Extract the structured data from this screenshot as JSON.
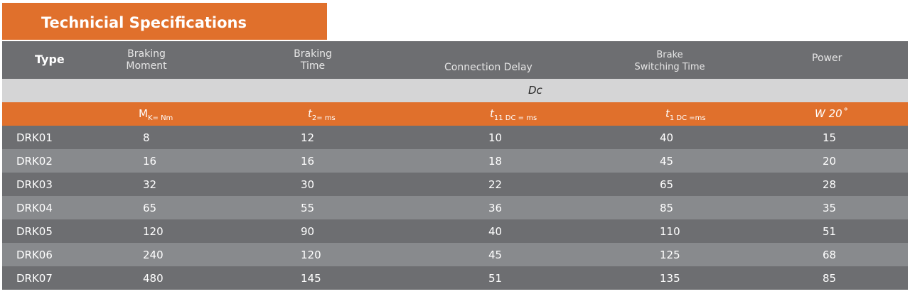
{
  "title": "Technicial Specifications",
  "header": {
    "type": "Type",
    "col1_line1": "Braking",
    "col1_line2": "Moment",
    "col2_line1": "Braking",
    "col2_line2": "Time",
    "col3": "Connection Delay",
    "col4_line1": "Brake",
    "col4_line2": "Switching Time",
    "col5": "Power"
  },
  "dc_label": "Dc",
  "units": {
    "u1_main": "M",
    "u1_sub": "K= Nm",
    "u2_main": "t",
    "u2_sub": "2= ms",
    "u3_main": "t",
    "u3_sub": "11 DC = ms",
    "u4_main": "t",
    "u4_sub": "1 DC =ms",
    "u5": "W 20˚"
  },
  "rows": [
    {
      "type": "DRK01",
      "moment": "8",
      "time": "12",
      "delay": "10",
      "switching": "40",
      "power": "15"
    },
    {
      "type": "DRK02",
      "moment": "16",
      "time": "16",
      "delay": "18",
      "switching": "45",
      "power": "20"
    },
    {
      "type": "DRK03",
      "moment": "32",
      "time": "30",
      "delay": "22",
      "switching": "65",
      "power": "28"
    },
    {
      "type": "DRK04",
      "moment": "65",
      "time": "55",
      "delay": "36",
      "switching": "85",
      "power": "35"
    },
    {
      "type": "DRK05",
      "moment": "120",
      "time": "90",
      "delay": "40",
      "switching": "110",
      "power": "51"
    },
    {
      "type": "DRK06",
      "moment": "240",
      "time": "120",
      "delay": "45",
      "switching": "125",
      "power": "68"
    },
    {
      "type": "DRK07",
      "moment": "480",
      "time": "145",
      "delay": "51",
      "switching": "135",
      "power": "85"
    }
  ],
  "colors": {
    "accent_orange": "#e0702c",
    "dark_row": "#6d6e71",
    "light_row": "#888a8d",
    "dc_band": "#d5d5d6"
  }
}
